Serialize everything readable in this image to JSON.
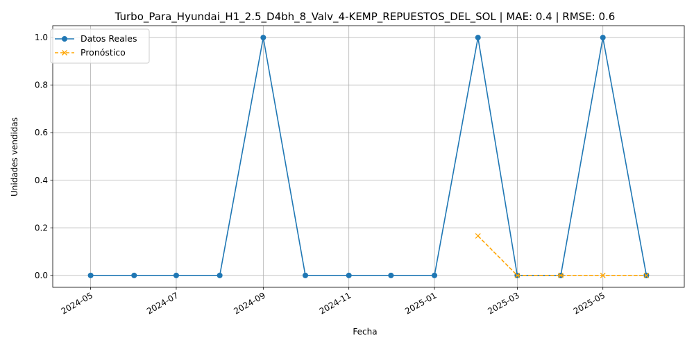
{
  "chart_data": {
    "type": "line",
    "title": "Turbo_Para_Hyundai_H1_2.5_D4bh_8_Valv_4-KEMP_REPUESTOS_DEL_SOL | MAE: 0.4 | RMSE: 0.6",
    "xlabel": "Fecha",
    "ylabel": "Unidades vendidas",
    "xlim": [
      "2024-04-04",
      "2025-06-28"
    ],
    "ylim": [
      -0.05,
      1.05
    ],
    "x_ticks": [
      "2024-05",
      "2024-07",
      "2024-09",
      "2024-11",
      "2025-01",
      "2025-03",
      "2025-05"
    ],
    "y_ticks": [
      "0.0",
      "0.2",
      "0.4",
      "0.6",
      "0.8",
      "1.0"
    ],
    "grid": true,
    "legend_position": "upper-left",
    "series": [
      {
        "name": "Datos Reales",
        "color": "#1f77b4",
        "marker": "circle",
        "linestyle": "solid",
        "x": [
          "2024-05-01",
          "2024-06-01",
          "2024-07-01",
          "2024-08-01",
          "2024-09-01",
          "2024-10-01",
          "2024-11-01",
          "2024-12-01",
          "2025-01-01",
          "2025-02-01",
          "2025-03-01",
          "2025-04-01",
          "2025-05-01",
          "2025-06-01"
        ],
        "y": [
          0,
          0,
          0,
          0,
          1,
          0,
          0,
          0,
          0,
          1,
          0,
          0,
          1,
          0
        ]
      },
      {
        "name": "Pronóstico",
        "color": "#ffa500",
        "marker": "x",
        "linestyle": "dashed",
        "x": [
          "2025-02-01",
          "2025-03-01",
          "2025-04-01",
          "2025-05-01",
          "2025-06-01"
        ],
        "y": [
          0.166,
          0.0,
          0.0,
          0.0,
          0.0
        ]
      }
    ]
  }
}
